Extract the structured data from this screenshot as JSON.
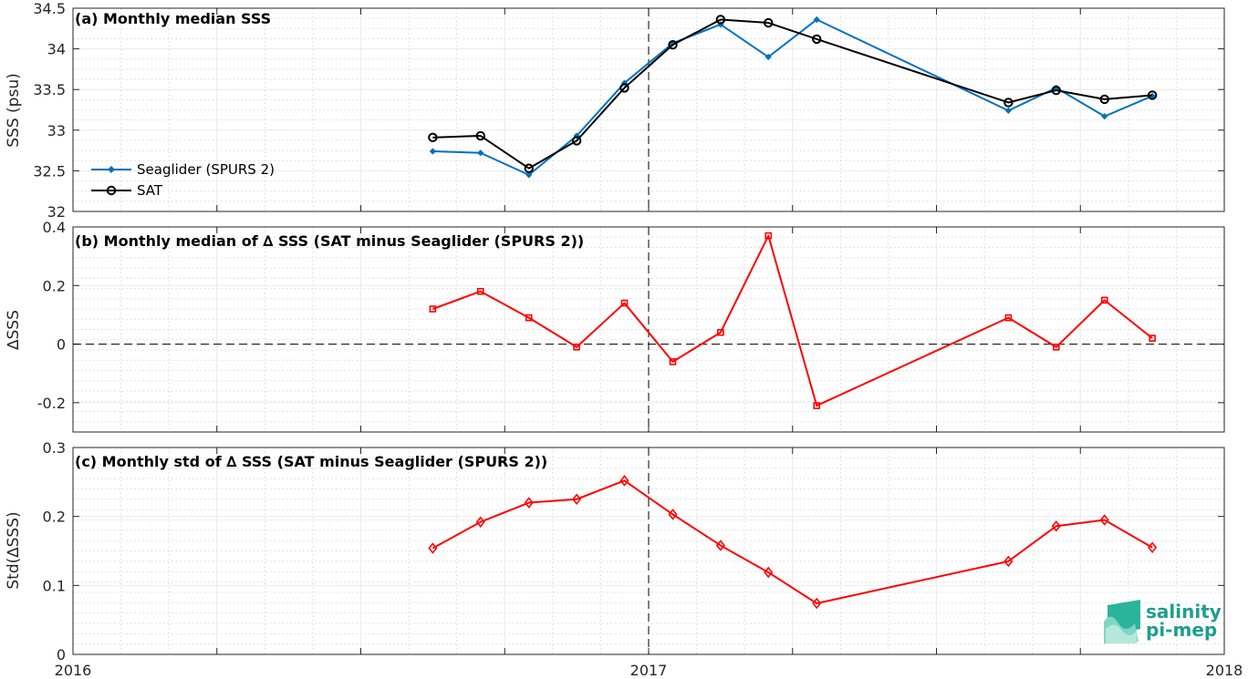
{
  "chart_data": [
    {
      "id": "a",
      "type": "line",
      "title": "(a) Monthly median SSS",
      "ylabel": "SSS (psu)",
      "xlim": [
        2016.0,
        2018.0
      ],
      "ylim": [
        32,
        34.5
      ],
      "yticks": [
        32,
        32.5,
        33,
        33.5,
        34,
        34.5
      ],
      "ytick_labels": [
        "32",
        "32.5",
        "33",
        "33.5",
        "34",
        "34.5"
      ],
      "grid": true,
      "legend_position": "lower-left",
      "x": [
        2016.625,
        2016.708,
        2016.792,
        2016.875,
        2016.958,
        2017.042,
        2017.125,
        2017.208,
        2017.292,
        2017.625,
        2017.708,
        2017.792,
        2017.875
      ],
      "series": [
        {
          "name": "Seaglider (SPURS 2)",
          "color": "#0072bd",
          "marker": "dot",
          "values": [
            32.74,
            32.72,
            32.45,
            32.93,
            33.58,
            34.07,
            34.3,
            33.9,
            34.36,
            33.24,
            33.52,
            33.17,
            33.42
          ]
        },
        {
          "name": "SAT",
          "color": "#000000",
          "marker": "circle",
          "values": [
            32.91,
            32.93,
            32.53,
            32.87,
            33.52,
            34.05,
            34.36,
            34.32,
            34.12,
            33.34,
            33.49,
            33.38,
            33.43
          ]
        }
      ]
    },
    {
      "id": "b",
      "type": "line",
      "title": "(b) Monthly median of ∆ SSS (SAT minus Seaglider (SPURS 2))",
      "ylabel": "∆SSS",
      "xlim": [
        2016.0,
        2018.0
      ],
      "ylim": [
        -0.3,
        0.4
      ],
      "yticks": [
        -0.2,
        0,
        0.2,
        0.4
      ],
      "ytick_labels": [
        "-0.2",
        "0",
        "0.2",
        "0.4"
      ],
      "grid": true,
      "zero_line": true,
      "x": [
        2016.625,
        2016.708,
        2016.792,
        2016.875,
        2016.958,
        2017.042,
        2017.125,
        2017.208,
        2017.292,
        2017.625,
        2017.708,
        2017.792,
        2017.875
      ],
      "series": [
        {
          "color": "#ff0000",
          "marker": "square",
          "values": [
            0.12,
            0.18,
            0.09,
            -0.01,
            0.14,
            -0.06,
            0.04,
            0.37,
            -0.21,
            0.09,
            -0.01,
            0.15,
            0.02
          ]
        }
      ]
    },
    {
      "id": "c",
      "type": "line",
      "title": "(c) Monthly std of ∆ SSS (SAT minus Seaglider (SPURS 2))",
      "ylabel": "Std(∆SSS)",
      "xlim": [
        2016.0,
        2018.0
      ],
      "ylim": [
        0,
        0.3
      ],
      "yticks": [
        0,
        0.1,
        0.2,
        0.3
      ],
      "ytick_labels": [
        "0",
        "0.1",
        "0.2",
        "0.3"
      ],
      "xticks": [
        2016,
        2017,
        2018
      ],
      "xtick_labels": [
        "2016",
        "2017",
        "2018"
      ],
      "grid": true,
      "x": [
        2016.625,
        2016.708,
        2016.792,
        2016.875,
        2016.958,
        2017.042,
        2017.125,
        2017.208,
        2017.292,
        2017.625,
        2017.708,
        2017.792,
        2017.875
      ],
      "series": [
        {
          "color": "#ff0000",
          "marker": "diamond",
          "values": [
            0.154,
            0.192,
            0.22,
            0.225,
            0.252,
            0.203,
            0.158,
            0.119,
            0.074,
            0.135,
            0.186,
            0.195,
            0.155
          ]
        }
      ]
    }
  ],
  "logo": {
    "line1": "salinity",
    "line2": "pi-mep",
    "color": "#1f9e8e"
  }
}
